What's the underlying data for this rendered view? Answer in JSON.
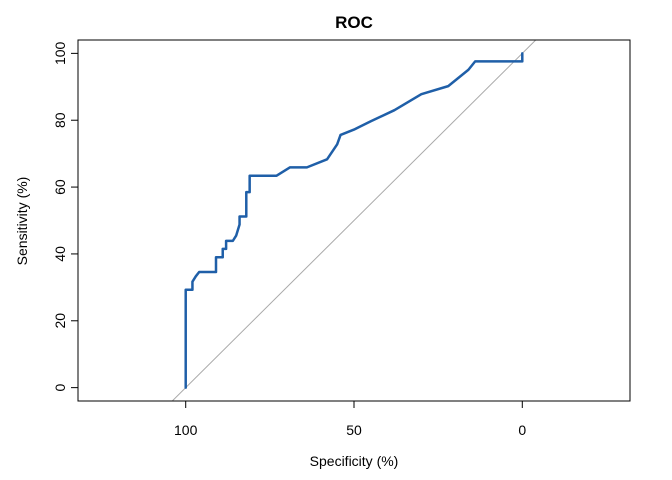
{
  "chart_data": {
    "type": "line",
    "title": "ROC",
    "xlabel": "Specificity (%)",
    "ylabel": "Sensitivity (%)",
    "xlim": [
      132,
      -32
    ],
    "ylim": [
      -4,
      104
    ],
    "x_reversed": true,
    "xticks": [
      100,
      50,
      0
    ],
    "yticks": [
      0,
      20,
      40,
      60,
      80,
      100
    ],
    "grid": false,
    "series": [
      {
        "color": "#1f5fa8",
        "points": [
          [
            100,
            0
          ],
          [
            100,
            29.3
          ],
          [
            98,
            29.3
          ],
          [
            98,
            31.7
          ],
          [
            97,
            33.3
          ],
          [
            96,
            34.6
          ],
          [
            91,
            34.6
          ],
          [
            91,
            39.0
          ],
          [
            89,
            39.0
          ],
          [
            89,
            41.5
          ],
          [
            88,
            41.5
          ],
          [
            88,
            43.9
          ],
          [
            86,
            43.9
          ],
          [
            85,
            45.5
          ],
          [
            84,
            48.8
          ],
          [
            84,
            51.2
          ],
          [
            82,
            51.2
          ],
          [
            82,
            58.5
          ],
          [
            81,
            58.5
          ],
          [
            81,
            63.4
          ],
          [
            73,
            63.4
          ],
          [
            69,
            65.9
          ],
          [
            64,
            65.9
          ],
          [
            58,
            68.3
          ],
          [
            55,
            72.8
          ],
          [
            54,
            75.6
          ],
          [
            50,
            77.2
          ],
          [
            45,
            79.7
          ],
          [
            38,
            83.0
          ],
          [
            30,
            87.8
          ],
          [
            22,
            90.2
          ],
          [
            16,
            95.1
          ],
          [
            14,
            97.6
          ],
          [
            0,
            97.6
          ],
          [
            0,
            100
          ]
        ]
      }
    ],
    "reference_line": {
      "color": "#a9a9a9",
      "from": [
        100,
        0
      ],
      "to": [
        0,
        100
      ]
    }
  }
}
